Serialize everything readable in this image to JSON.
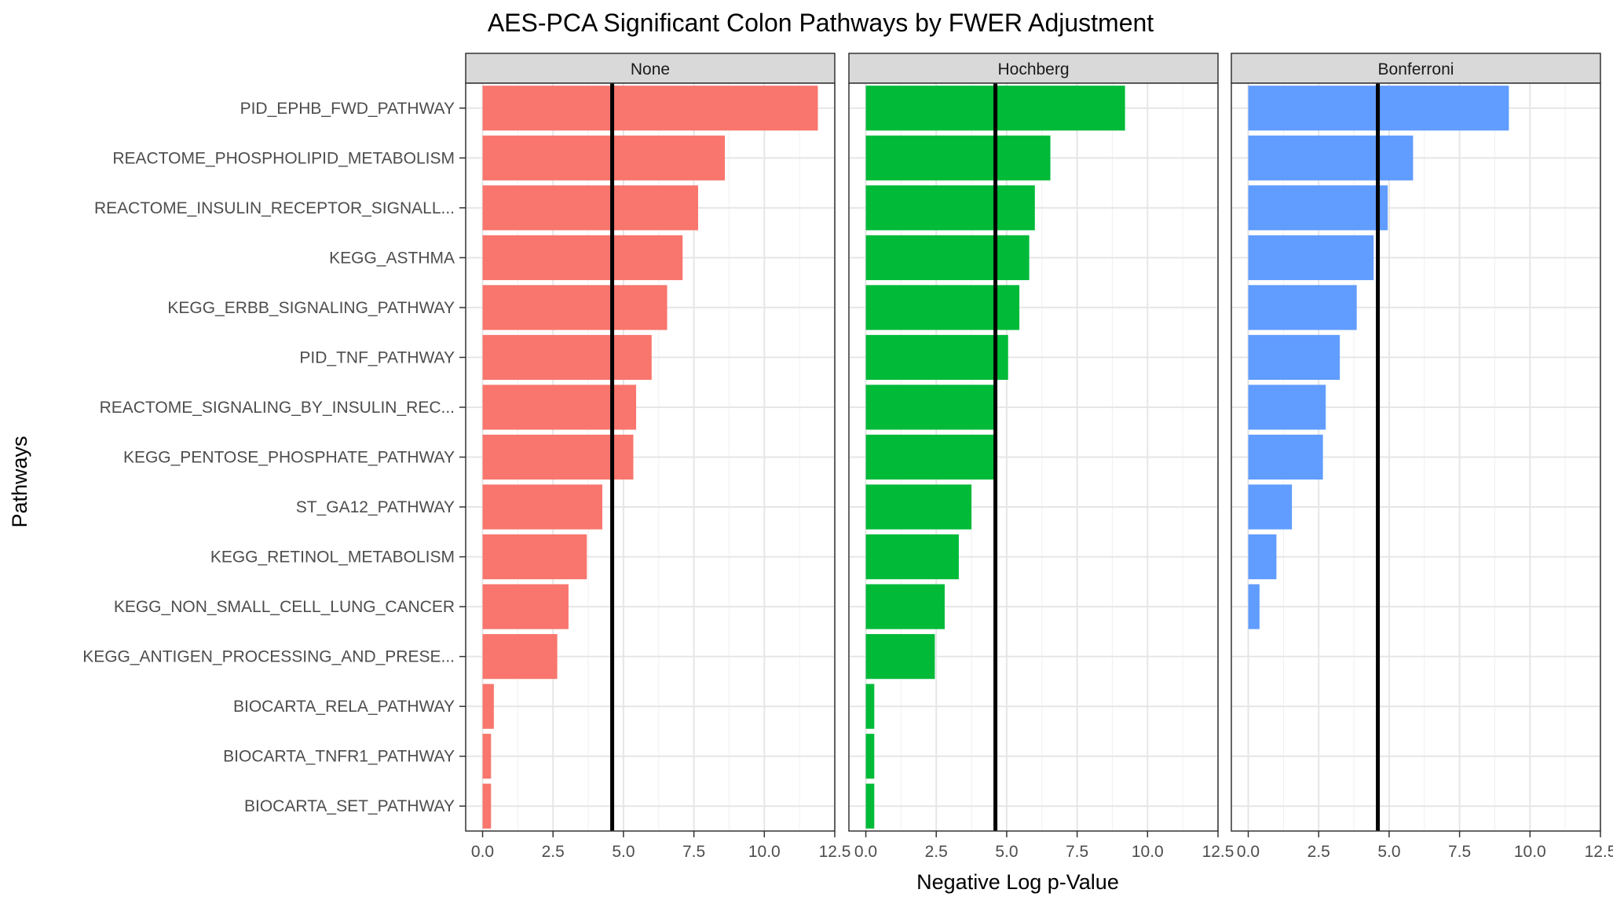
{
  "chart_data": {
    "type": "bar",
    "orientation": "horizontal",
    "title": "AES-PCA Significant Colon Pathways by FWER Adjustment",
    "xlabel": "Negative Log p-Value",
    "ylabel": "Pathways",
    "xlim": [
      -0.6,
      12.5
    ],
    "x_ticks": [
      "0.0",
      "2.5",
      "5.0",
      "7.5",
      "10.0",
      "12.5"
    ],
    "x_tick_values": [
      0,
      2.5,
      5,
      7.5,
      10,
      12.5
    ],
    "threshold": 4.6,
    "grid": true,
    "categories": [
      "PID_EPHB_FWD_PATHWAY",
      "REACTOME_PHOSPHOLIPID_METABOLISM",
      "REACTOME_INSULIN_RECEPTOR_SIGNALL...",
      "KEGG_ASTHMA",
      "KEGG_ERBB_SIGNALING_PATHWAY",
      "PID_TNF_PATHWAY",
      "REACTOME_SIGNALING_BY_INSULIN_REC...",
      "KEGG_PENTOSE_PHOSPHATE_PATHWAY",
      "ST_GA12_PATHWAY",
      "KEGG_RETINOL_METABOLISM",
      "KEGG_NON_SMALL_CELL_LUNG_CANCER",
      "KEGG_ANTIGEN_PROCESSING_AND_PRESE...",
      "BIOCARTA_RELA_PATHWAY",
      "BIOCARTA_TNFR1_PATHWAY",
      "BIOCARTA_SET_PATHWAY"
    ],
    "series": [
      {
        "name": "None",
        "color": "#F8766D",
        "values": [
          11.9,
          8.6,
          7.65,
          7.1,
          6.55,
          6.0,
          5.45,
          5.35,
          4.25,
          3.7,
          3.05,
          2.65,
          0.4,
          0.3,
          0.3
        ]
      },
      {
        "name": "Hochberg",
        "color": "#00BA38",
        "values": [
          9.2,
          6.55,
          6.0,
          5.8,
          5.45,
          5.05,
          4.65,
          4.65,
          3.75,
          3.3,
          2.8,
          2.45,
          0.3,
          0.3,
          0.3
        ]
      },
      {
        "name": "Bonferroni",
        "color": "#619CFF",
        "values": [
          9.25,
          5.85,
          4.95,
          4.45,
          3.85,
          3.25,
          2.75,
          2.65,
          1.55,
          1.0,
          0.4,
          null,
          null,
          null,
          null
        ]
      }
    ]
  }
}
